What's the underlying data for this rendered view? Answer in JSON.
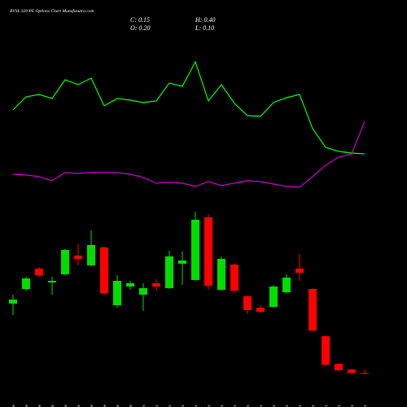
{
  "chart_data": {
    "type": "candlestick",
    "title": "BVSL 320 PE Options Chart Munafasutra.com",
    "ohlc_labels": {
      "close": "C: 0.15",
      "high": "H: 0.40",
      "open": "O: 0.20",
      "low": "L: 0.10"
    },
    "categories": [
      "17 Nov",
      "18 Nov",
      "19 Nov",
      "20 Nov",
      "21 Nov",
      "24 Nov",
      "25 Nov",
      "26 Nov",
      "27 Nov",
      "28 Nov",
      "01 Dec",
      "02 Dec",
      "03 Dec",
      "05 Dec",
      "08 Dec",
      "09 Dec",
      "10 Dec",
      "11 Dec",
      "12 Dec",
      "15 Dec",
      "16 Dec",
      "17 Dec",
      "18 Dec",
      "19 Dec",
      "22 Dec",
      "23 Dec",
      "24 Dec",
      "26 Dec"
    ],
    "open": [
      4.45,
      5.35,
      6.6,
      5.75,
      6.25,
      7.4,
      6.8,
      7.9,
      4.35,
      5.5,
      5.0,
      5.7,
      5.4,
      6.9,
      5.9,
      9.75,
      5.3,
      6.85,
      4.9,
      4.2,
      4.25,
      5.15,
      6.6,
      5.35,
      2.45,
      0.75,
      0.4,
      0.2
    ],
    "high": [
      5.0,
      6.1,
      6.7,
      6.1,
      7.8,
      8.1,
      8.95,
      7.95,
      6.2,
      5.85,
      5.7,
      5.95,
      7.7,
      7.65,
      10.1,
      9.95,
      7.35,
      6.9,
      4.95,
      4.35,
      5.6,
      6.25,
      7.5,
      5.4,
      2.5,
      0.8,
      0.45,
      0.4
    ],
    "low": [
      3.75,
      5.25,
      6.1,
      5.0,
      6.2,
      6.8,
      6.75,
      5.0,
      4.2,
      5.3,
      4.0,
      5.25,
      5.35,
      5.6,
      5.85,
      5.3,
      5.25,
      5.2,
      3.8,
      3.85,
      4.2,
      5.05,
      5.85,
      2.7,
      0.65,
      0.3,
      0.15,
      0.1
    ],
    "close": [
      4.7,
      6.0,
      6.2,
      5.85,
      7.75,
      7.2,
      8.05,
      5.1,
      5.85,
      5.7,
      5.4,
      5.5,
      7.35,
      7.1,
      9.6,
      5.55,
      7.2,
      5.25,
      4.05,
      3.95,
      5.5,
      6.05,
      6.35,
      2.8,
      0.7,
      0.35,
      0.2,
      0.15
    ],
    "up_color": "#00dd00",
    "down_color": "#ff0000",
    "ylim": [
      0,
      10.35
    ],
    "y2lim": [
      0,
      10
    ],
    "series": [
      {
        "axis": "y2",
        "color": "#00ff00",
        "values": [
          6.25,
          7.05,
          7.2,
          6.95,
          8.1,
          7.8,
          8.2,
          6.5,
          6.95,
          6.85,
          6.7,
          6.8,
          7.9,
          7.7,
          9.2,
          6.8,
          7.8,
          6.65,
          5.9,
          5.85,
          6.7,
          7.0,
          7.2,
          5.1,
          3.95,
          3.7,
          3.6,
          3.55
        ]
      },
      {
        "axis": "y2",
        "color": "#cc00cc",
        "values": [
          2.3,
          2.25,
          2.15,
          1.9,
          2.4,
          2.35,
          2.4,
          2.4,
          2.4,
          2.3,
          2.1,
          1.75,
          1.8,
          1.75,
          1.55,
          1.85,
          1.6,
          1.75,
          1.9,
          1.85,
          1.7,
          1.55,
          1.5,
          2.15,
          2.85,
          3.35,
          3.55,
          5.55
        ]
      }
    ]
  }
}
